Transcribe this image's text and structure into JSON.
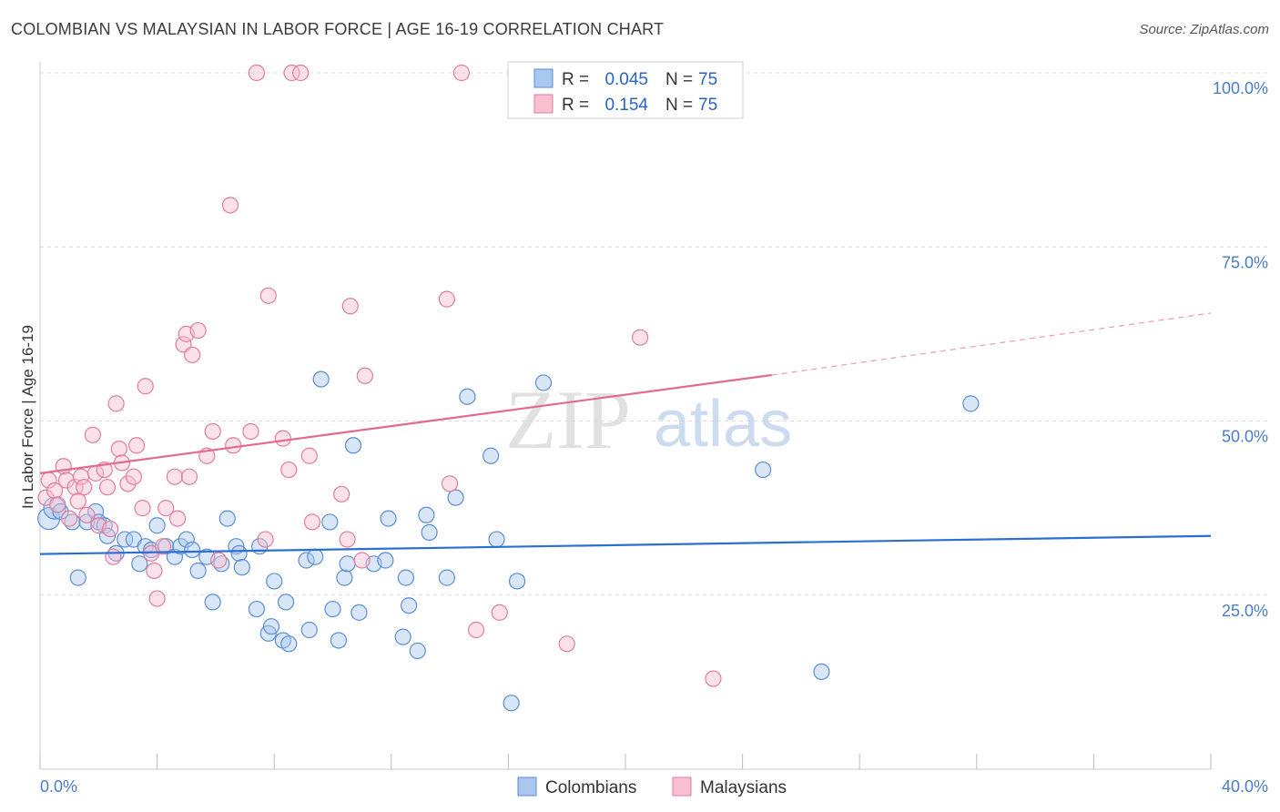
{
  "title": "COLOMBIAN VS MALAYSIAN IN LABOR FORCE | AGE 16-19 CORRELATION CHART",
  "source": "Source: ZipAtlas.com",
  "watermark": {
    "zip": "ZIP",
    "atlas": "atlas"
  },
  "legend": {
    "rows": [
      {
        "r_label": "R =",
        "r_value": "0.045",
        "n_label": "N =",
        "n_value": "75",
        "color": "#aac7ef",
        "stroke": "#5a8fd6"
      },
      {
        "r_label": "R =",
        "r_value": "0.154",
        "n_label": "N =",
        "n_value": "75",
        "color": "#f7bfd0",
        "stroke": "#e07d9e"
      }
    ]
  },
  "bottom_legend": [
    {
      "label": "Colombians",
      "color": "#aac7ef",
      "stroke": "#5a8fd6"
    },
    {
      "label": "Malaysians",
      "color": "#f7bfd0",
      "stroke": "#e07d9e"
    }
  ],
  "chart_data": {
    "type": "scatter",
    "title": "COLOMBIAN VS MALAYSIAN IN LABOR FORCE | AGE 16-19 CORRELATION CHART",
    "xlabel": "",
    "ylabel": "In Labor Force | Age 16-19",
    "xlim": [
      0,
      40
    ],
    "ylim": [
      0,
      100
    ],
    "x_ticks": [
      "0.0%",
      "40.0%"
    ],
    "y_ticks": [
      {
        "value": 25,
        "label": "25.0%"
      },
      {
        "value": 50,
        "label": "50.0%"
      },
      {
        "value": 75,
        "label": "75.0%"
      },
      {
        "value": 100,
        "label": "100.0%"
      }
    ],
    "grid": true,
    "series": [
      {
        "name": "Colombians",
        "color": "#5a8fd6",
        "fill": "#aac7ef",
        "trend": {
          "x": [
            0,
            40
          ],
          "y": [
            30.9,
            33.5
          ]
        },
        "points": [
          [
            0.3,
            36
          ],
          [
            0.5,
            37.5
          ],
          [
            0.7,
            37
          ],
          [
            1.1,
            35.5
          ],
          [
            1.3,
            27.5
          ],
          [
            1.6,
            35.5
          ],
          [
            1.9,
            37
          ],
          [
            2.0,
            35.5
          ],
          [
            2.2,
            35
          ],
          [
            2.3,
            33.5
          ],
          [
            2.6,
            31
          ],
          [
            2.9,
            33
          ],
          [
            3.2,
            33
          ],
          [
            3.4,
            29.5
          ],
          [
            3.6,
            32
          ],
          [
            3.8,
            31.5
          ],
          [
            4.0,
            35
          ],
          [
            4.3,
            32
          ],
          [
            4.6,
            30.5
          ],
          [
            4.8,
            32
          ],
          [
            5.0,
            33
          ],
          [
            5.2,
            31.5
          ],
          [
            5.4,
            28.5
          ],
          [
            5.7,
            30.5
          ],
          [
            5.9,
            24
          ],
          [
            6.2,
            29.5
          ],
          [
            6.4,
            36
          ],
          [
            6.7,
            32
          ],
          [
            6.8,
            31
          ],
          [
            6.9,
            29
          ],
          [
            7.4,
            23
          ],
          [
            7.5,
            32
          ],
          [
            7.8,
            19.5
          ],
          [
            7.9,
            20.5
          ],
          [
            8.0,
            27
          ],
          [
            8.3,
            18.5
          ],
          [
            8.4,
            24
          ],
          [
            8.5,
            18
          ],
          [
            9.1,
            30
          ],
          [
            9.2,
            20
          ],
          [
            9.4,
            30.5
          ],
          [
            9.6,
            56
          ],
          [
            9.9,
            35.5
          ],
          [
            10.0,
            23
          ],
          [
            10.2,
            18.5
          ],
          [
            10.4,
            27.5
          ],
          [
            10.5,
            29.5
          ],
          [
            10.7,
            46.5
          ],
          [
            10.9,
            22.5
          ],
          [
            11.4,
            29.5
          ],
          [
            11.8,
            30
          ],
          [
            11.9,
            36
          ],
          [
            12.4,
            19
          ],
          [
            12.5,
            27.5
          ],
          [
            12.6,
            23.5
          ],
          [
            12.9,
            17
          ],
          [
            13.2,
            36.5
          ],
          [
            13.3,
            34
          ],
          [
            13.9,
            27.5
          ],
          [
            14.2,
            39
          ],
          [
            14.6,
            53.5
          ],
          [
            15.4,
            45
          ],
          [
            15.6,
            33
          ],
          [
            16.1,
            9.5
          ],
          [
            16.3,
            27
          ],
          [
            17.2,
            55.5
          ],
          [
            24.7,
            43
          ],
          [
            26.7,
            14
          ],
          [
            31.8,
            52.5
          ]
        ]
      },
      {
        "name": "Malaysians",
        "color": "#e07d9e",
        "fill": "#f7bfd0",
        "trend": {
          "x": [
            0,
            25
          ],
          "y": [
            42.5,
            56.6
          ]
        },
        "trend_ext": {
          "x": [
            25,
            40
          ],
          "y": [
            56.6,
            65.5
          ]
        },
        "points": [
          [
            0.2,
            39
          ],
          [
            0.3,
            41.5
          ],
          [
            0.5,
            40
          ],
          [
            0.6,
            38
          ],
          [
            0.8,
            43.5
          ],
          [
            0.9,
            41.5
          ],
          [
            1.0,
            36
          ],
          [
            1.2,
            40.5
          ],
          [
            1.3,
            38.5
          ],
          [
            1.4,
            42
          ],
          [
            1.5,
            40.5
          ],
          [
            1.6,
            36.5
          ],
          [
            1.8,
            48
          ],
          [
            1.9,
            42.5
          ],
          [
            2.0,
            35
          ],
          [
            2.2,
            43
          ],
          [
            2.3,
            40.5
          ],
          [
            2.4,
            34.5
          ],
          [
            2.5,
            30.5
          ],
          [
            2.6,
            52.5
          ],
          [
            2.7,
            46
          ],
          [
            2.8,
            44
          ],
          [
            3.0,
            41
          ],
          [
            3.2,
            42
          ],
          [
            3.3,
            46.5
          ],
          [
            3.5,
            37.5
          ],
          [
            3.6,
            55
          ],
          [
            3.8,
            31
          ],
          [
            3.9,
            28.5
          ],
          [
            4.0,
            24.5
          ],
          [
            4.2,
            32
          ],
          [
            4.3,
            37.5
          ],
          [
            4.6,
            42
          ],
          [
            4.7,
            36
          ],
          [
            4.9,
            61
          ],
          [
            5.0,
            62.5
          ],
          [
            5.1,
            42
          ],
          [
            5.2,
            59.5
          ],
          [
            5.4,
            63
          ],
          [
            5.7,
            45
          ],
          [
            5.9,
            48.5
          ],
          [
            6.1,
            30
          ],
          [
            6.5,
            81
          ],
          [
            6.6,
            46.5
          ],
          [
            7.2,
            48.5
          ],
          [
            7.4,
            100
          ],
          [
            7.7,
            33
          ],
          [
            7.8,
            68
          ],
          [
            8.3,
            47.5
          ],
          [
            8.5,
            43
          ],
          [
            8.6,
            100
          ],
          [
            8.9,
            100
          ],
          [
            9.2,
            45
          ],
          [
            9.3,
            35.5
          ],
          [
            10.3,
            39.5
          ],
          [
            10.5,
            33
          ],
          [
            10.6,
            66.5
          ],
          [
            11.0,
            30
          ],
          [
            11.1,
            56.5
          ],
          [
            13.9,
            67.5
          ],
          [
            14.0,
            41
          ],
          [
            14.4,
            100
          ],
          [
            14.9,
            20
          ],
          [
            15.7,
            22.5
          ],
          [
            16.3,
            100
          ],
          [
            18.0,
            18
          ],
          [
            20.5,
            62
          ],
          [
            23.0,
            13
          ]
        ]
      }
    ]
  }
}
